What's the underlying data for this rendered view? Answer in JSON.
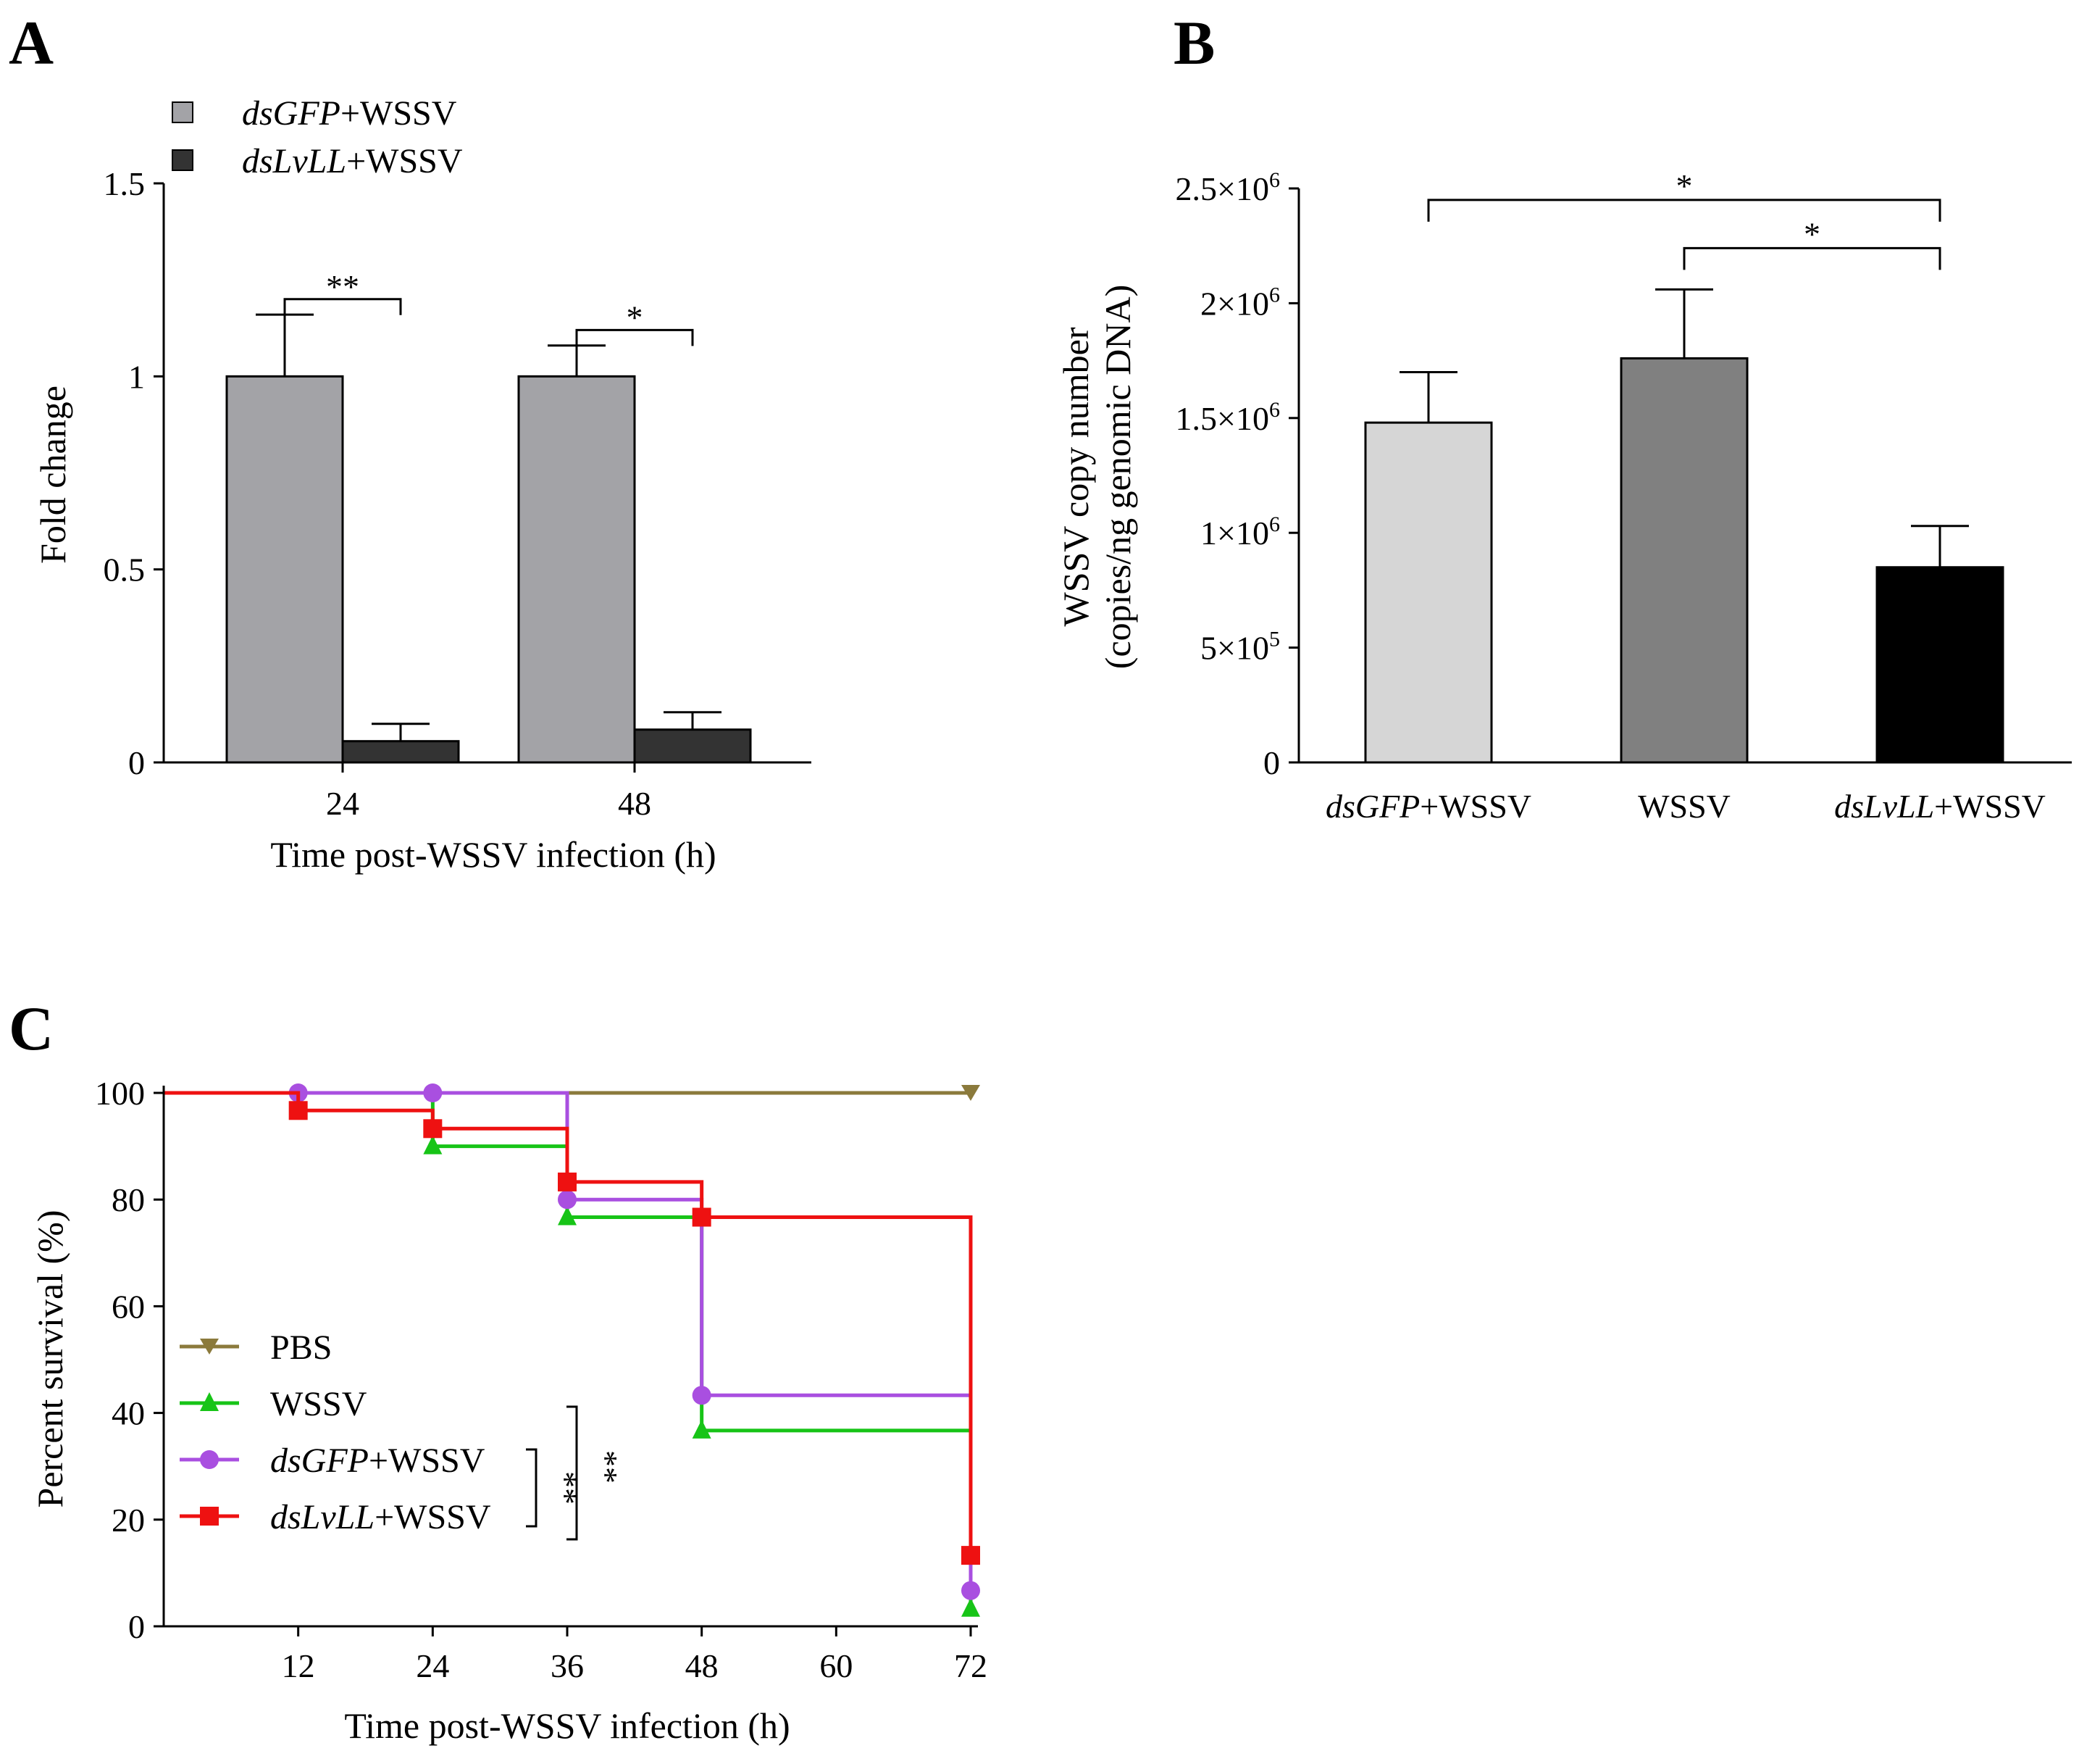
{
  "chart_data": [
    {
      "panel": "A",
      "type": "bar",
      "categories": [
        "24",
        "48"
      ],
      "xlabel": "Time post-WSSV infection (h)",
      "ylabel": "Fold change",
      "ylim": [
        0,
        1.5
      ],
      "yticks": [
        "0",
        "0.5",
        "1",
        "1.5"
      ],
      "legend": "top-left",
      "series": [
        {
          "name_italic": "dsGFP",
          "name_suffix": "+WSSV",
          "color": "#a3a3a7",
          "values": [
            1.0,
            1.0
          ],
          "errors": [
            0.16,
            0.08
          ]
        },
        {
          "name_italic": "dsLvLL",
          "name_suffix": "+WSSV",
          "color": "#333333",
          "values": [
            0.055,
            0.085
          ],
          "errors": [
            0.045,
            0.045
          ]
        }
      ],
      "significance": [
        {
          "category": "24",
          "label": "**",
          "y": 1.2
        },
        {
          "category": "48",
          "label": "*",
          "y": 1.12
        }
      ]
    },
    {
      "panel": "B",
      "type": "bar",
      "ylabel_line1": "WSSV copy number",
      "ylabel_line2": "(copies/ng genomic DNA)",
      "ylim": [
        0,
        2500000
      ],
      "yticks": [
        {
          "value": 0,
          "base": "0",
          "exp": ""
        },
        {
          "value": 500000,
          "base": "5×10",
          "exp": "5"
        },
        {
          "value": 1000000,
          "base": "1×10",
          "exp": "6"
        },
        {
          "value": 1500000,
          "base": "1.5×10",
          "exp": "6"
        },
        {
          "value": 2000000,
          "base": "2×10",
          "exp": "6"
        },
        {
          "value": 2500000,
          "base": "2.5×10",
          "exp": "6"
        }
      ],
      "bars": [
        {
          "label_italic": "dsGFP",
          "label_suffix": "+WSSV",
          "value": 1480000,
          "error": 220000,
          "color": "#d6d6d6"
        },
        {
          "label_italic": "",
          "label_suffix": "WSSV",
          "value": 1760000,
          "error": 300000,
          "color": "#808080"
        },
        {
          "label_italic": "dsLvLL",
          "label_suffix": "+WSSV",
          "value": 850000,
          "error": 180000,
          "color": "#000000"
        }
      ],
      "significance": [
        {
          "from": 0,
          "to": 2,
          "label": "*",
          "y": 2450000
        },
        {
          "from": 1,
          "to": 2,
          "label": "*",
          "y": 2240000
        }
      ]
    },
    {
      "panel": "C",
      "type": "line",
      "subtype": "survival-step",
      "xlabel": "Time post-WSSV infection (h)",
      "ylabel": "Percent survival (%)",
      "xlim": [
        0,
        72
      ],
      "ylim": [
        0,
        100
      ],
      "xticks": [
        "12",
        "24",
        "36",
        "48",
        "60",
        "72"
      ],
      "yticks": [
        "0",
        "20",
        "40",
        "60",
        "80",
        "100"
      ],
      "legend": "bottom-left",
      "series": [
        {
          "name": "PBS",
          "color": "#8b7a3c",
          "marker": "triangle-down",
          "x": [
            0,
            72
          ],
          "y": [
            100,
            100
          ],
          "marker_points": [
            [
              72,
              100
            ]
          ]
        },
        {
          "name": "WSSV",
          "color": "#17c417",
          "marker": "triangle-up",
          "x": [
            0,
            24,
            36,
            48,
            72
          ],
          "y": [
            100,
            90,
            76.7,
            36.7,
            3.3
          ],
          "marker_points": [
            [
              24,
              90
            ],
            [
              36,
              76.7
            ],
            [
              48,
              36.7
            ],
            [
              72,
              3.3
            ]
          ]
        },
        {
          "name_italic": "dsGFP",
          "name_suffix": "+WSSV",
          "color": "#a94fe0",
          "marker": "circle",
          "x": [
            0,
            36,
            48,
            72
          ],
          "y": [
            100,
            80,
            43.3,
            6.7
          ],
          "marker_points": [
            [
              12,
              100
            ],
            [
              24,
              100
            ],
            [
              36,
              80
            ],
            [
              48,
              43.3
            ],
            [
              72,
              6.7
            ]
          ]
        },
        {
          "name_italic": "dsLvLL",
          "name_suffix": "+WSSV",
          "color": "#ee1111",
          "marker": "square",
          "x": [
            0,
            12,
            24,
            36,
            48,
            72
          ],
          "y": [
            100,
            96.7,
            93.3,
            83.3,
            76.7,
            13.3
          ],
          "marker_points": [
            [
              12,
              96.7
            ],
            [
              24,
              93.3
            ],
            [
              36,
              83.3
            ],
            [
              48,
              76.7
            ],
            [
              72,
              13.3
            ]
          ]
        }
      ],
      "significance": [
        {
          "label": "**",
          "pair": "dsGFP+WSSV vs dsLvLL+WSSV"
        },
        {
          "label": "**",
          "pair": "WSSV vs dsLvLL+WSSV"
        }
      ]
    }
  ]
}
